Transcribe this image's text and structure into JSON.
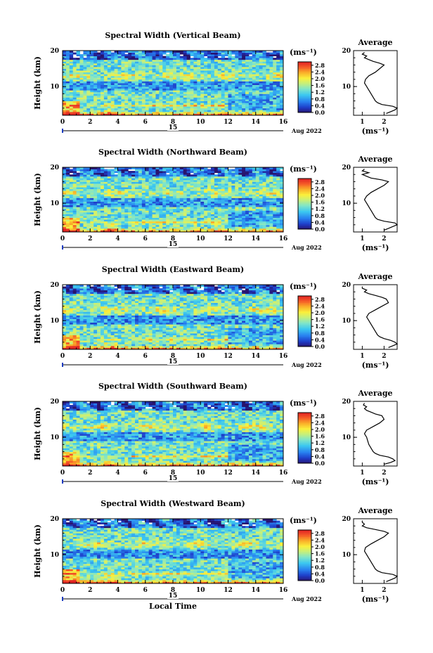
{
  "figure": {
    "xlabel": "Local Time",
    "date_labels": {
      "day": "15",
      "month_year": "Aug 2022"
    },
    "colorbar_unit": "(ms⁻¹)",
    "avg_title": "Average",
    "avg_xlabel": "(ms⁻¹)"
  },
  "chart_data": [
    {
      "type": "heatmap",
      "title": "Spectral Width (Vertical Beam)",
      "xlabel": "",
      "ylabel": "Height (km)",
      "xlim": [
        0,
        16
      ],
      "ylim": [
        2,
        20
      ],
      "xticks": [
        0,
        2,
        4,
        6,
        8,
        10,
        12,
        14,
        16
      ],
      "yticks": [
        10,
        20
      ],
      "colorbar": {
        "ticks": [
          0.0,
          0.4,
          0.8,
          1.2,
          1.6,
          2.0,
          2.4,
          2.8
        ],
        "range": [
          0,
          3.0
        ]
      },
      "profile": {
        "title": "Average",
        "xlim": [
          0.6,
          2.6
        ],
        "xticks": [
          1,
          2
        ],
        "height": [
          2.5,
          3,
          3.5,
          4,
          4.5,
          5,
          5.5,
          6,
          7,
          8,
          9,
          10,
          11,
          12,
          13,
          14,
          15,
          16,
          16.5,
          17,
          17.5,
          18,
          18.5,
          19,
          19.5
        ],
        "value": [
          2.1,
          2.3,
          2.5,
          2.6,
          2.4,
          1.9,
          1.7,
          1.6,
          1.5,
          1.4,
          1.3,
          1.2,
          1.1,
          1.15,
          1.3,
          1.6,
          1.8,
          2.0,
          1.8,
          1.5,
          1.3,
          1.1,
          1.2,
          1.0,
          1.1
        ]
      }
    },
    {
      "type": "heatmap",
      "title": "Spectral Width (Northward Beam)",
      "xlabel": "",
      "ylabel": "Height (km)",
      "xlim": [
        0,
        16
      ],
      "ylim": [
        2,
        20
      ],
      "xticks": [
        0,
        2,
        4,
        6,
        8,
        10,
        12,
        14,
        16
      ],
      "yticks": [
        10,
        20
      ],
      "colorbar": {
        "ticks": [
          0.0,
          0.4,
          0.8,
          1.2,
          1.6,
          2.0,
          2.4,
          2.8
        ],
        "range": [
          0,
          3.0
        ]
      },
      "profile": {
        "title": "Average",
        "xlim": [
          0.6,
          2.6
        ],
        "xticks": [
          1,
          2
        ],
        "height": [
          2.5,
          3,
          3.5,
          4,
          4.5,
          5,
          5.5,
          6,
          7,
          8,
          9,
          10,
          11,
          12,
          13,
          14,
          15,
          16,
          16.5,
          17,
          17.5,
          18,
          18.5,
          19,
          19.5
        ],
        "value": [
          2.0,
          2.2,
          2.4,
          2.6,
          2.5,
          2.0,
          1.7,
          1.6,
          1.5,
          1.4,
          1.3,
          1.2,
          1.1,
          1.2,
          1.4,
          1.7,
          2.0,
          2.2,
          1.9,
          1.4,
          1.2,
          1.0,
          1.3,
          1.0,
          1.1
        ]
      }
    },
    {
      "type": "heatmap",
      "title": "Spectral Width (Eastward Beam)",
      "xlabel": "",
      "ylabel": "Height (km)",
      "xlim": [
        0,
        16
      ],
      "ylim": [
        2,
        20
      ],
      "xticks": [
        0,
        2,
        4,
        6,
        8,
        10,
        12,
        14,
        16
      ],
      "yticks": [
        10,
        20
      ],
      "colorbar": {
        "ticks": [
          0.0,
          0.4,
          0.8,
          1.2,
          1.6,
          2.0,
          2.4,
          2.8
        ],
        "range": [
          0,
          3.0
        ]
      },
      "profile": {
        "title": "Average",
        "xlim": [
          0.6,
          2.6
        ],
        "xticks": [
          1,
          2
        ],
        "height": [
          2.5,
          3,
          3.5,
          4,
          4.5,
          5,
          5.5,
          6,
          7,
          8,
          9,
          10,
          11,
          12,
          13,
          14,
          15,
          16,
          16.5,
          17,
          17.5,
          18,
          18.5,
          19,
          19.5
        ],
        "value": [
          2.2,
          2.4,
          2.6,
          2.5,
          2.3,
          2.0,
          1.8,
          1.7,
          1.6,
          1.5,
          1.4,
          1.3,
          1.2,
          1.3,
          1.6,
          1.9,
          2.2,
          2.1,
          1.9,
          1.6,
          1.3,
          1.1,
          1.2,
          1.0,
          1.0
        ]
      }
    },
    {
      "type": "heatmap",
      "title": "Spectral Width (Southward Beam)",
      "xlabel": "",
      "ylabel": "Height (km)",
      "xlim": [
        0,
        16
      ],
      "ylim": [
        2,
        20
      ],
      "xticks": [
        0,
        2,
        4,
        6,
        8,
        10,
        12,
        14,
        16
      ],
      "yticks": [
        10,
        20
      ],
      "colorbar": {
        "ticks": [
          0.0,
          0.4,
          0.8,
          1.2,
          1.6,
          2.0,
          2.4,
          2.8
        ],
        "range": [
          0,
          3.0
        ]
      },
      "profile": {
        "title": "Average",
        "xlim": [
          0.6,
          2.6
        ],
        "xticks": [
          1,
          2
        ],
        "height": [
          2.5,
          3,
          3.5,
          4,
          4.5,
          5,
          5.5,
          6,
          7,
          8,
          9,
          10,
          11,
          12,
          13,
          14,
          15,
          16,
          16.5,
          17,
          17.5,
          18,
          18.5,
          19,
          19.5
        ],
        "value": [
          2.0,
          2.3,
          2.5,
          2.4,
          2.2,
          1.8,
          1.6,
          1.5,
          1.4,
          1.3,
          1.25,
          1.2,
          1.1,
          1.2,
          1.5,
          1.8,
          2.0,
          1.9,
          1.6,
          1.4,
          1.2,
          1.1,
          1.2,
          1.05,
          1.1
        ]
      }
    },
    {
      "type": "heatmap",
      "title": "Spectral Width (Westward Beam)",
      "xlabel": "Local Time",
      "ylabel": "Height (km)",
      "xlim": [
        0,
        16
      ],
      "ylim": [
        2,
        20
      ],
      "xticks": [
        0,
        2,
        4,
        6,
        8,
        10,
        12,
        14,
        16
      ],
      "yticks": [
        10,
        20
      ],
      "colorbar": {
        "ticks": [
          0.0,
          0.4,
          0.8,
          1.2,
          1.6,
          2.0,
          2.4,
          2.8
        ],
        "range": [
          0,
          3.0
        ]
      },
      "profile": {
        "title": "Average",
        "xlim": [
          0.6,
          2.6
        ],
        "xticks": [
          1,
          2
        ],
        "height": [
          2.5,
          3,
          3.5,
          4,
          4.5,
          5,
          5.5,
          6,
          7,
          8,
          9,
          10,
          11,
          12,
          13,
          14,
          15,
          16,
          16.5,
          17,
          17.5,
          18,
          18.5,
          19,
          19.5
        ],
        "value": [
          2.1,
          2.3,
          2.5,
          2.6,
          2.4,
          1.9,
          1.7,
          1.6,
          1.5,
          1.4,
          1.3,
          1.2,
          1.1,
          1.15,
          1.4,
          1.7,
          2.0,
          2.2,
          2.0,
          1.6,
          1.2,
          1.0,
          1.1,
          1.0,
          1.0
        ]
      }
    }
  ]
}
